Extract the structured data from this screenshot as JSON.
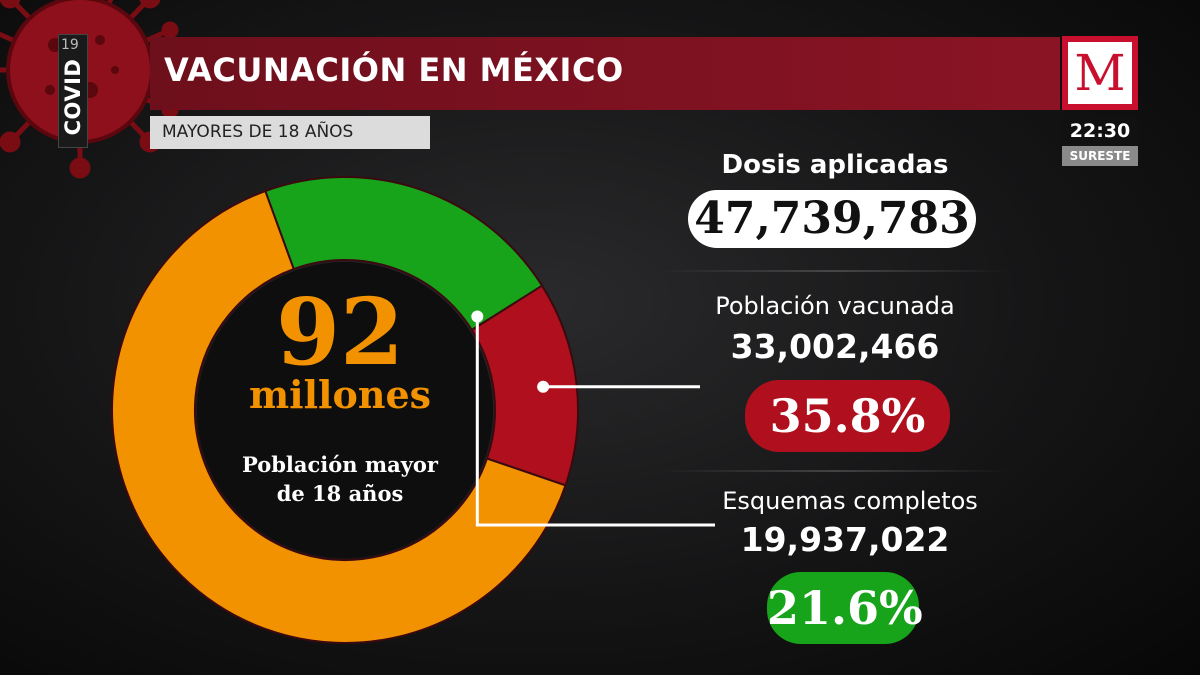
{
  "header": {
    "title": "VACUNACIÓN EN MÉXICO",
    "subtitle": "MAYORES DE 18 AÑOS"
  },
  "covid_tag": {
    "label": "COVID",
    "number": "19"
  },
  "logo": {
    "letter": "M",
    "time": "22:30",
    "region": "SURESTE"
  },
  "donut_center": {
    "value": "92",
    "unit": "millones",
    "label_line1": "Población mayor",
    "label_line2": "de 18 años"
  },
  "stats": {
    "dosis": {
      "label": "Dosis aplicadas",
      "value": "47,739,783"
    },
    "vacunada": {
      "label": "Población vacunada",
      "value": "33,002,466",
      "percent": "35.8%"
    },
    "completos": {
      "label": "Esquemas completos",
      "value": "19,937,022",
      "percent": "21.6%"
    }
  },
  "colors": {
    "orange": "#f39200",
    "green": "#17a31a",
    "red": "#b0101e",
    "title_bar": "#7d1220"
  },
  "icons": [
    "virus-icon",
    "m-logo-icon"
  ],
  "chart_data": {
    "type": "pie",
    "total": 92,
    "slices": [
      {
        "label": "Esquemas completos",
        "value": 21.6,
        "color": "#17a31a"
      },
      {
        "label": "Población vacunada",
        "value": 14.2,
        "color": "#b0101e"
      },
      {
        "label": "Población mayor de 18 años",
        "value": 64.2,
        "color": "#f39200"
      }
    ]
  }
}
